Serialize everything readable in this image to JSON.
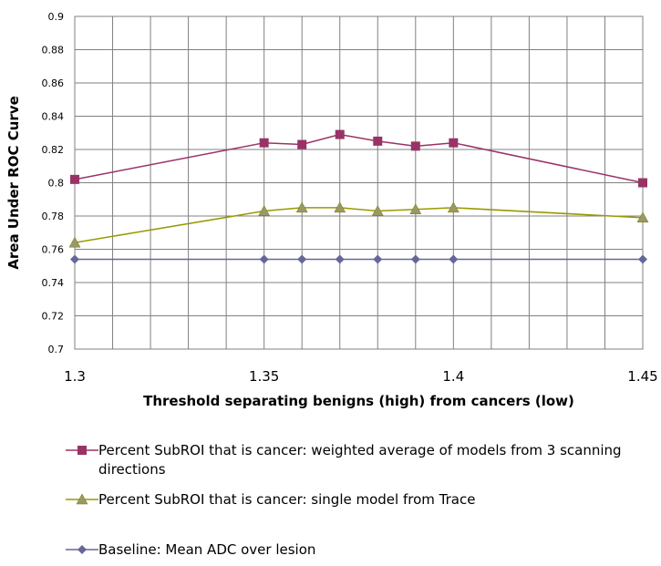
{
  "chart_data": {
    "type": "line",
    "title": "",
    "xlabel": "Threshold separating benigns (high) from cancers (low)",
    "ylabel": "Area Under ROC Curve",
    "xlim": [
      1.3,
      1.45
    ],
    "ylim": [
      0.7,
      0.9
    ],
    "x_ticks": [
      "1.3",
      "1.35",
      "1.4",
      "1.45"
    ],
    "y_ticks": [
      "0.9",
      "0.88",
      "0.86",
      "0.84",
      "0.82",
      "0.8",
      "0.78",
      "0.76",
      "0.74",
      "0.72",
      "0.7"
    ],
    "grid": true,
    "legend_position": "bottom",
    "series": [
      {
        "name": "Percent SubROI that is cancer: weighted average of models from 3 scanning directions",
        "color": "#993366",
        "marker": "square",
        "x": [
          1.3,
          1.35,
          1.36,
          1.37,
          1.38,
          1.39,
          1.4,
          1.45
        ],
        "values": [
          0.802,
          0.824,
          0.823,
          0.829,
          0.825,
          0.822,
          0.824,
          0.8
        ]
      },
      {
        "name": "Percent SubROI that is cancer: single model from Trace",
        "color": "#999900",
        "marker": "triangle",
        "x": [
          1.3,
          1.35,
          1.36,
          1.37,
          1.38,
          1.39,
          1.4,
          1.45
        ],
        "values": [
          0.764,
          0.783,
          0.785,
          0.785,
          0.783,
          0.784,
          0.785,
          0.779
        ]
      },
      {
        "name": "Baseline: Mean ADC over lesion",
        "color": "#666699",
        "marker": "diamond",
        "x": [
          1.3,
          1.35,
          1.36,
          1.37,
          1.38,
          1.39,
          1.4,
          1.45
        ],
        "values": [
          0.754,
          0.754,
          0.754,
          0.754,
          0.754,
          0.754,
          0.754,
          0.754
        ]
      }
    ]
  }
}
